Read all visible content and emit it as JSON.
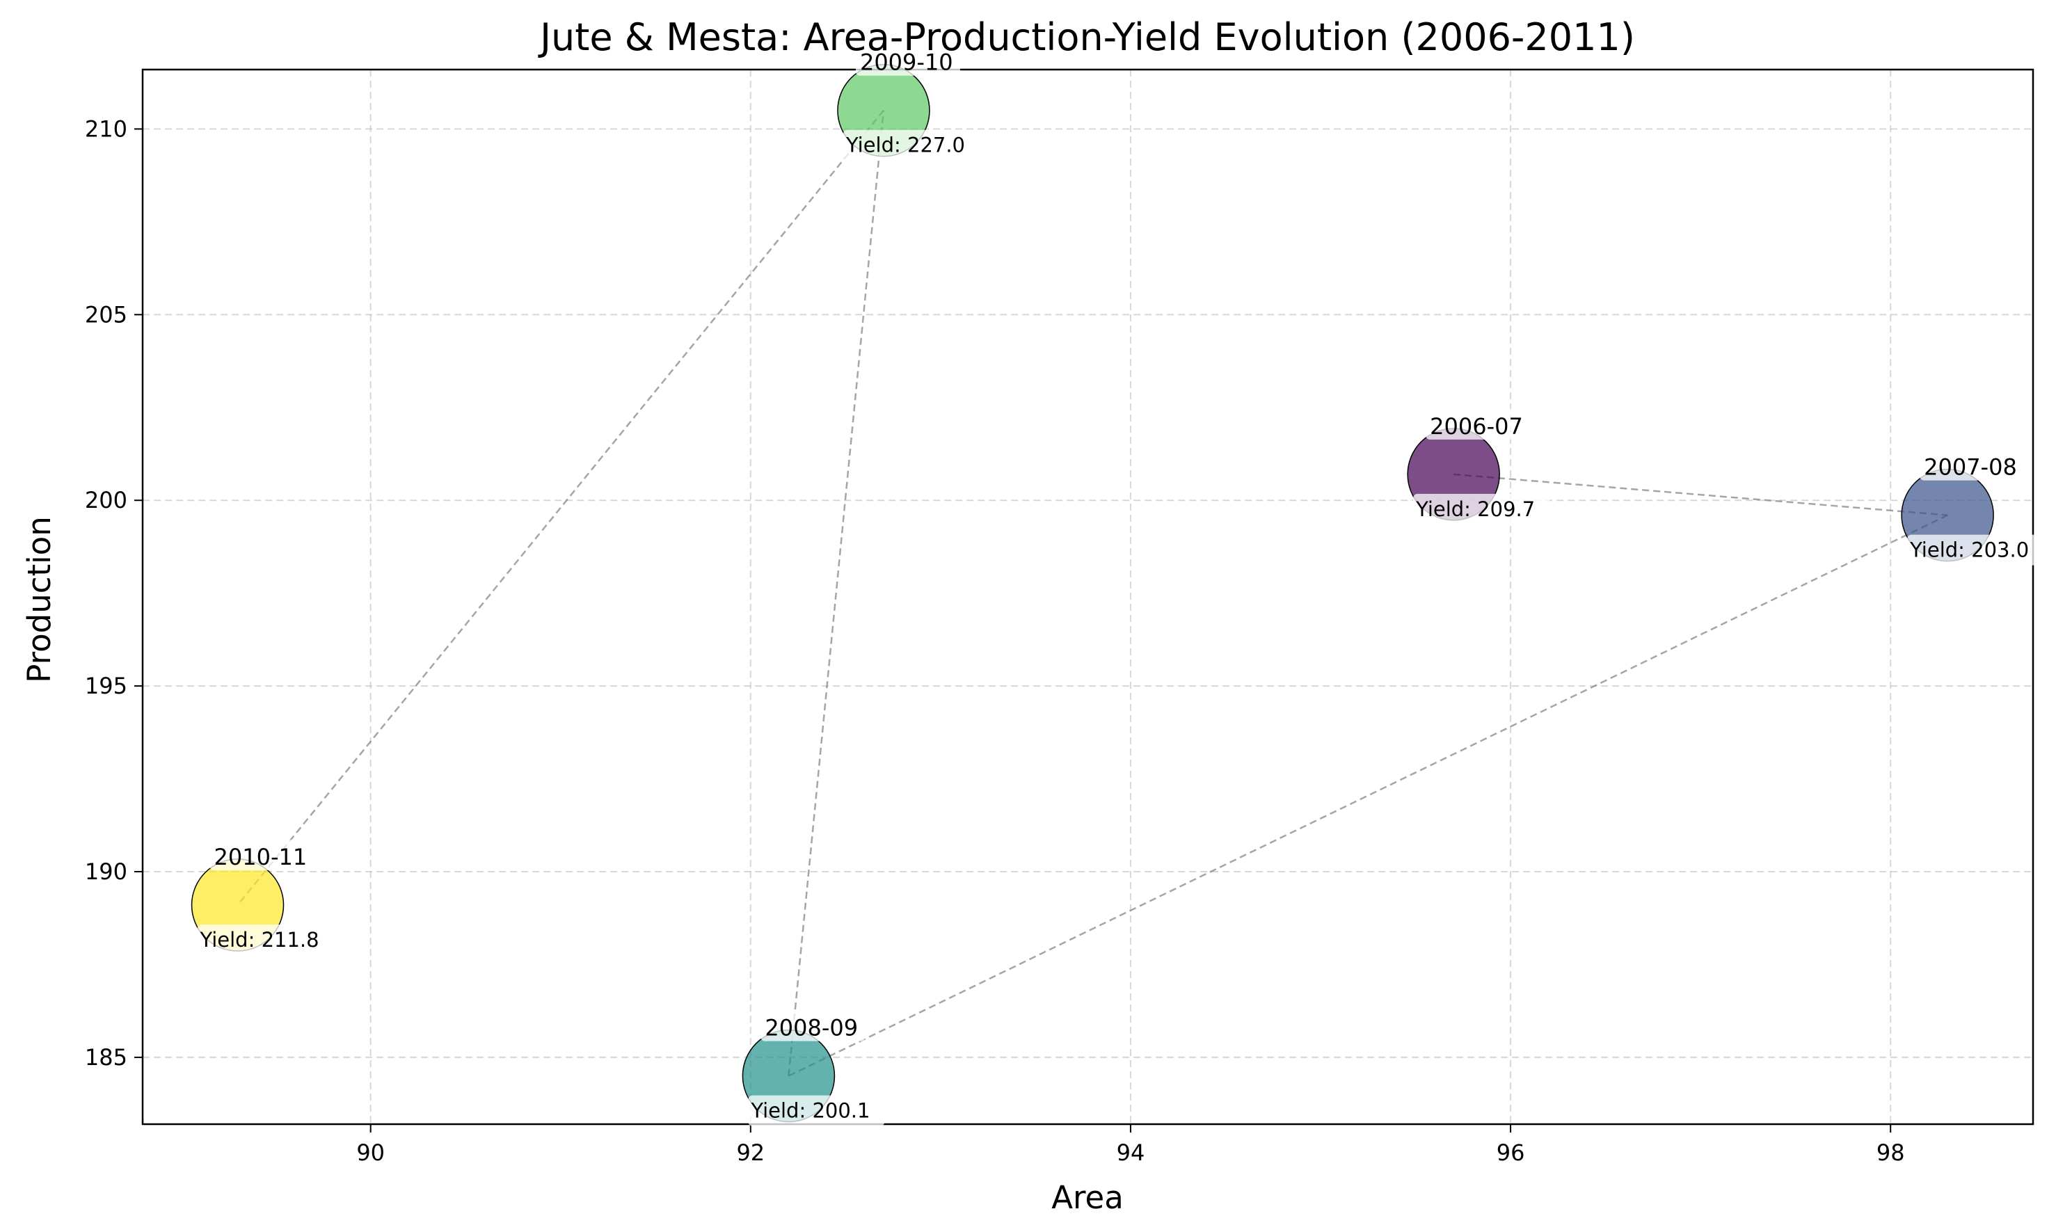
{
  "chart_data": {
    "type": "scatter",
    "title": "Jute & Mesta: Area-Production-Yield Evolution (2006-2011)",
    "xlabel": "Area",
    "ylabel": "Production",
    "xlim": [
      88.8,
      98.75
    ],
    "ylim": [
      183.2,
      211.6
    ],
    "xticks": [
      90,
      92,
      94,
      96,
      98
    ],
    "yticks": [
      185,
      190,
      195,
      200,
      205,
      210
    ],
    "grid": true,
    "connector_style": "dashed-gray",
    "points": [
      {
        "label": "2006-07",
        "x": 95.7,
        "y": 200.7,
        "yield_label": "Yield: 209.7",
        "color": "#440154"
      },
      {
        "label": "2007-08",
        "x": 98.3,
        "y": 199.6,
        "yield_label": "Yield: 203.0",
        "color": "#3b528b"
      },
      {
        "label": "2008-09",
        "x": 92.2,
        "y": 184.5,
        "yield_label": "Yield: 200.1",
        "color": "#21918c"
      },
      {
        "label": "2009-10",
        "x": 92.7,
        "y": 210.5,
        "yield_label": "Yield: 227.0",
        "color": "#5ec962"
      },
      {
        "label": "2010-11",
        "x": 89.3,
        "y": 189.1,
        "yield_label": "Yield: 211.8",
        "color": "#fde725"
      }
    ]
  }
}
